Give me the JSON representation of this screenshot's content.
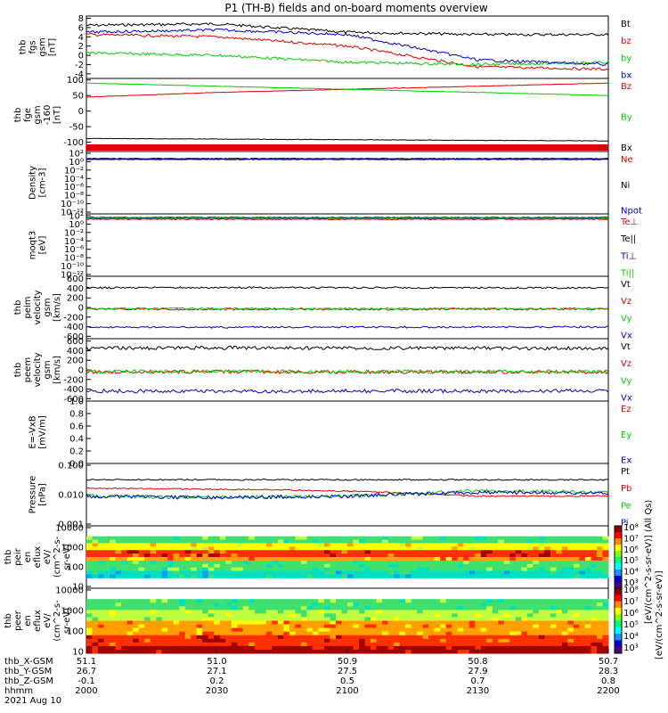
{
  "title": "P1 (TH-B) fields and on-board moments overview",
  "colors": {
    "black": "#000000",
    "red": "#dd0000",
    "blue": "#0000cc",
    "green": "#00cc00",
    "frame": "#000000"
  },
  "panels": [
    {
      "id": "fgs",
      "ylabel": [
        "thb",
        "fgs",
        "gsm",
        "[nT]"
      ],
      "yrange": [
        -5,
        8.5
      ],
      "ticks": [
        "8",
        "6",
        "4",
        "2",
        "0",
        "-2",
        "-4"
      ],
      "tickvals": [
        8,
        6,
        4,
        2,
        0,
        -2,
        -4
      ],
      "legend": [
        {
          "t": "Bt",
          "c": "black"
        },
        {
          "t": "bz",
          "c": "red"
        },
        {
          "t": "by",
          "c": "green"
        },
        {
          "t": "bx",
          "c": "blue"
        }
      ]
    },
    {
      "id": "fge",
      "ylabel": [
        "thb",
        "fge",
        "gsm",
        "-160",
        "[nT]"
      ],
      "yrange": [
        -130,
        105
      ],
      "ticks": [
        "100",
        "50",
        "0",
        "-50",
        "-100"
      ],
      "tickvals": [
        100,
        50,
        0,
        -50,
        -100
      ],
      "legend": [
        {
          "t": "Bz",
          "c": "red"
        },
        {
          "t": "By",
          "c": "green"
        },
        {
          "t": "Bx",
          "c": "black"
        }
      ]
    },
    {
      "id": "dens",
      "ylabel": [
        "Density",
        "[cm-3]"
      ],
      "ticks": [
        "10²",
        "10⁰",
        "10⁻²",
        "10⁻⁴",
        "10⁻⁶",
        "10⁻⁸",
        "10⁻¹⁰",
        "10⁻¹²"
      ],
      "legend": [
        {
          "t": "Ne",
          "c": "red"
        },
        {
          "t": "Ni",
          "c": "black"
        },
        {
          "t": "Npot",
          "c": "blue"
        }
      ]
    },
    {
      "id": "temp",
      "ylabel": [
        "moqt3",
        "[eV]"
      ],
      "ticks": [
        "10²",
        "10⁰",
        "10⁻²",
        "10⁻⁴",
        "10⁻⁶",
        "10⁻⁸",
        "10⁻¹⁰",
        "10⁻¹²"
      ],
      "legend": [
        {
          "t": "Te⊥",
          "c": "red"
        },
        {
          "t": "Te||",
          "c": "black"
        },
        {
          "t": "Ti⊥",
          "c": "blue"
        },
        {
          "t": "Ti||",
          "c": "green"
        }
      ]
    },
    {
      "id": "vi",
      "ylabel": [
        "thb",
        "peim",
        "velocity",
        "gsm",
        "[km/s]"
      ],
      "yrange": [
        -650,
        650
      ],
      "ticks": [
        "600",
        "400",
        "200",
        "0",
        "-200",
        "-400",
        "-600"
      ],
      "tickvals": [
        600,
        400,
        200,
        0,
        -200,
        -400,
        -600
      ],
      "legend": [
        {
          "t": "Vt",
          "c": "black"
        },
        {
          "t": "Vz",
          "c": "red"
        },
        {
          "t": "Vy",
          "c": "green"
        },
        {
          "t": "Vx",
          "c": "blue"
        }
      ]
    },
    {
      "id": "ve",
      "ylabel": [
        "thb",
        "peem",
        "velocity",
        "gsm",
        "[km/s]"
      ],
      "yrange": [
        -650,
        650
      ],
      "ticks": [
        "600",
        "400",
        "200",
        "0",
        "-200",
        "-400",
        "-600"
      ],
      "tickvals": [
        600,
        400,
        200,
        0,
        -200,
        -400,
        -600
      ],
      "legend": [
        {
          "t": "Vt",
          "c": "black"
        },
        {
          "t": "Vz",
          "c": "red"
        },
        {
          "t": "Vy",
          "c": "green"
        },
        {
          "t": "Vx",
          "c": "blue"
        }
      ]
    },
    {
      "id": "efield",
      "ylabel": [
        "E=-VxB",
        "[mV/m]"
      ],
      "yrange": [
        0,
        1
      ],
      "ticks": [
        "1.0",
        "0.8",
        "0.6",
        "0.4",
        "0.2",
        "0.0"
      ],
      "tickvals": [
        1,
        0.8,
        0.6,
        0.4,
        0.2,
        0
      ],
      "legend": [
        {
          "t": "Ez",
          "c": "red"
        },
        {
          "t": "Ey",
          "c": "green"
        },
        {
          "t": "Ex",
          "c": "blue"
        }
      ]
    },
    {
      "id": "press",
      "ylabel": [
        "Pressure",
        "[nPa]"
      ],
      "ticks": [
        "0.100",
        "0.010",
        "0.001"
      ],
      "legend": [
        {
          "t": "Pt",
          "c": "black"
        },
        {
          "t": "Pb",
          "c": "red"
        },
        {
          "t": "Pe",
          "c": "green"
        },
        {
          "t": "Pi",
          "c": "blue"
        }
      ]
    },
    {
      "id": "ion",
      "ylabel": [
        "thb",
        "peir",
        "en",
        "eflux",
        "eV/",
        "(cm^2-s-",
        "sr-eV)"
      ],
      "ticks": [
        "10000",
        "1000",
        "100",
        "10"
      ]
    },
    {
      "id": "ele",
      "ylabel": [
        "thb",
        "peer",
        "en",
        "eflux",
        "eV/",
        "(cm^2-s-",
        "sr-eV)"
      ],
      "ticks": [
        "10000",
        "1000",
        "100",
        "10"
      ]
    }
  ],
  "colorbar": {
    "ticks": [
      "10⁸",
      "10⁷",
      "10⁶",
      "10⁵",
      "10⁴",
      "10³"
    ],
    "label": "[eV/(cm^2-s-sr-eV)]",
    "label2": "[eV/(cm^2-s-sr-eV)] (All Qs)"
  },
  "xaxis": {
    "rows": [
      {
        "name": "thb_X-GSM",
        "vals": [
          "51.1",
          "51.0",
          "50.9",
          "50.8",
          "50.7"
        ]
      },
      {
        "name": "thb_Y-GSM",
        "vals": [
          "26.7",
          "27.1",
          "27.5",
          "27.9",
          "28.3"
        ]
      },
      {
        "name": "thb_Z-GSM",
        "vals": [
          "-0.1",
          "0.2",
          "0.5",
          "0.7",
          "0.8"
        ]
      },
      {
        "name": "hhmm",
        "vals": [
          "2000",
          "2030",
          "2100",
          "2130",
          "2200"
        ]
      }
    ],
    "date": "2021 Aug 10"
  },
  "chart_data": [
    {
      "type": "line",
      "title": "P1 (TH-B) fields and on-board moments overview",
      "ylabel": "thb fgs gsm [nT]",
      "ylim": [
        -5,
        8.5
      ],
      "x": [
        "2000",
        "2030",
        "2100",
        "2130",
        "2200"
      ],
      "series": [
        {
          "name": "Bt",
          "values": [
            6.5,
            6.8,
            5.0,
            4.5,
            4.5
          ]
        },
        {
          "name": "bz",
          "values": [
            4.5,
            4.0,
            2.0,
            -2.5,
            -3.0
          ]
        },
        {
          "name": "by",
          "values": [
            0.5,
            0.0,
            -1.5,
            -2.0,
            -1.5
          ]
        },
        {
          "name": "bx",
          "values": [
            5.0,
            5.5,
            4.5,
            -1.0,
            -2.0
          ]
        }
      ]
    },
    {
      "type": "line",
      "ylabel": "thb fge gsm -160 [nT]",
      "ylim": [
        -130,
        105
      ],
      "x": [
        "2000",
        "2030",
        "2100",
        "2130",
        "2200"
      ],
      "series": [
        {
          "name": "Bz",
          "values": [
            45,
            60,
            70,
            80,
            90
          ]
        },
        {
          "name": "By",
          "values": [
            90,
            80,
            70,
            60,
            50
          ]
        },
        {
          "name": "Bx",
          "values": [
            -88,
            -90,
            -92,
            -94,
            -96
          ]
        }
      ]
    },
    {
      "type": "line",
      "ylabel": "Density [cm-3]",
      "scale": "log",
      "series": [
        {
          "name": "Ne",
          "values": [
            0.4,
            0.4,
            0.4,
            0.4,
            0.4
          ]
        },
        {
          "name": "Ni",
          "values": [
            0.3,
            0.3,
            0.3,
            0.3,
            0.3
          ]
        },
        {
          "name": "Npot",
          "values": [
            0.2,
            0.2,
            0.2,
            0.2,
            0.2
          ]
        }
      ]
    },
    {
      "type": "line",
      "ylabel": "moqt3 [eV]",
      "scale": "log",
      "series": [
        {
          "name": "Te⊥",
          "values": [
            20,
            20,
            20,
            20,
            20
          ]
        },
        {
          "name": "Te||",
          "values": [
            25,
            25,
            25,
            25,
            25
          ]
        },
        {
          "name": "Ti⊥",
          "values": [
            60,
            60,
            60,
            60,
            60
          ]
        },
        {
          "name": "Ti||",
          "values": [
            40,
            40,
            40,
            40,
            40
          ]
        }
      ]
    },
    {
      "type": "line",
      "ylabel": "thb peim velocity gsm [km/s]",
      "ylim": [
        -650,
        650
      ],
      "x": [
        "2000",
        "2030",
        "2100",
        "2130",
        "2200"
      ],
      "series": [
        {
          "name": "Vt",
          "values": [
            410,
            415,
            412,
            410,
            408
          ]
        },
        {
          "name": "Vz",
          "values": [
            -30,
            -40,
            -40,
            -35,
            -35
          ]
        },
        {
          "name": "Vy",
          "values": [
            -20,
            -20,
            -25,
            -25,
            -25
          ]
        },
        {
          "name": "Vx",
          "values": [
            -410,
            -412,
            -410,
            -408,
            -405
          ]
        }
      ]
    },
    {
      "type": "line",
      "ylabel": "thb peem velocity gsm [km/s]",
      "ylim": [
        -650,
        650
      ],
      "x": [
        "2000",
        "2030",
        "2100",
        "2130",
        "2200"
      ],
      "series": [
        {
          "name": "Vt",
          "values": [
            450,
            460,
            455,
            450,
            450
          ]
        },
        {
          "name": "Vz",
          "values": [
            -40,
            -40,
            -45,
            -45,
            -45
          ]
        },
        {
          "name": "Vy",
          "values": [
            -40,
            -35,
            -40,
            -40,
            -40
          ]
        },
        {
          "name": "Vx",
          "values": [
            -440,
            -445,
            -440,
            -440,
            -440
          ]
        }
      ]
    },
    {
      "type": "line",
      "ylabel": "E=-VxB [mV/m]",
      "ylim": [
        0,
        1
      ],
      "series": []
    },
    {
      "type": "line",
      "ylabel": "Pressure [nPa]",
      "scale": "log",
      "ylim": [
        0.001,
        0.1
      ],
      "x": [
        "2000",
        "2030",
        "2100",
        "2130",
        "2200"
      ],
      "series": [
        {
          "name": "Pt",
          "values": [
            0.03,
            0.03,
            0.03,
            0.03,
            0.03
          ]
        },
        {
          "name": "Pb",
          "values": [
            0.016,
            0.015,
            0.013,
            0.009,
            0.009
          ]
        },
        {
          "name": "Pe",
          "values": [
            0.009,
            0.008,
            0.009,
            0.013,
            0.012
          ]
        },
        {
          "name": "Pi",
          "values": [
            0.009,
            0.008,
            0.009,
            0.012,
            0.011
          ]
        }
      ]
    },
    {
      "type": "heatmap",
      "ylabel": "thb peir en eflux",
      "scale": "log",
      "yticks": [
        "10000",
        "1000",
        "100",
        "10"
      ]
    },
    {
      "type": "heatmap",
      "ylabel": "thb peer en eflux",
      "scale": "log",
      "yticks": [
        "10000",
        "1000",
        "100",
        "10"
      ]
    }
  ]
}
